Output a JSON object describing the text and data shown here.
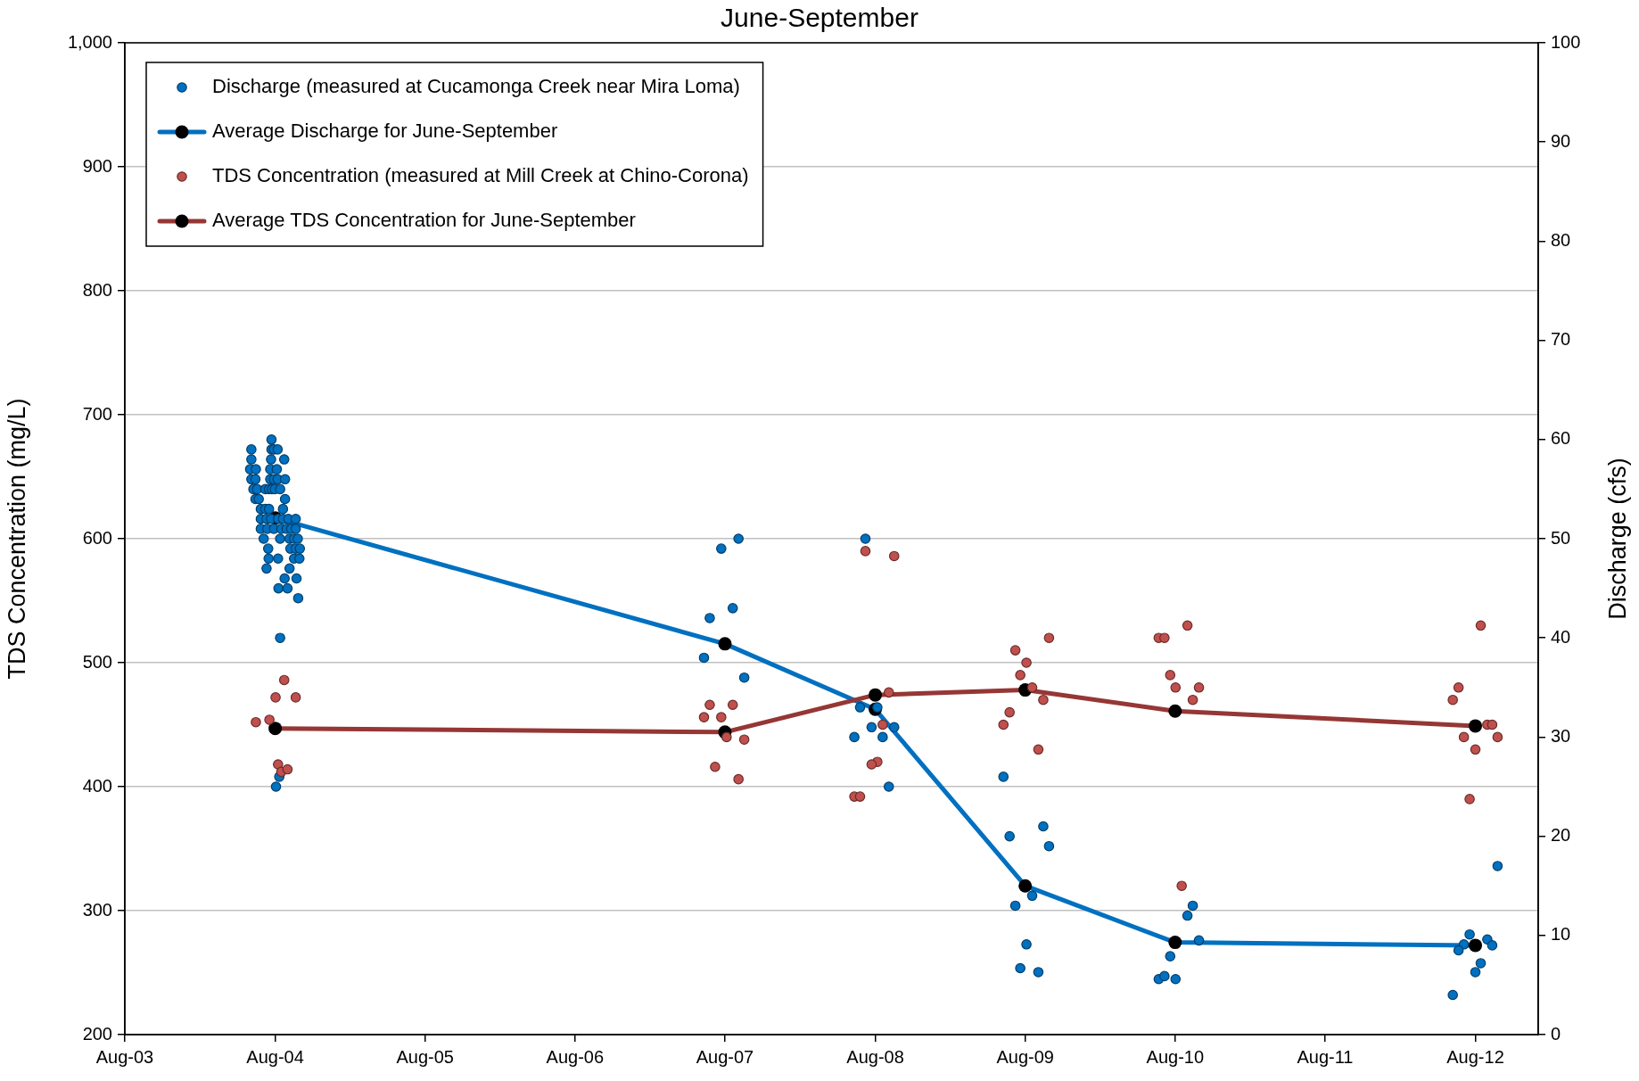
{
  "chart_data": {
    "type": "scatter",
    "title": "June-September",
    "ylabel": "TDS Concentration (mg/L)",
    "y2label": "Discharge (cfs)",
    "xlim": [
      "2003-08-01",
      "2013-01-01"
    ],
    "xticks": [
      {
        "value": "2003-08-01",
        "label": "Aug-03"
      },
      {
        "value": "2004-08-01",
        "label": "Aug-04"
      },
      {
        "value": "2005-08-01",
        "label": "Aug-05"
      },
      {
        "value": "2006-08-01",
        "label": "Aug-06"
      },
      {
        "value": "2007-08-01",
        "label": "Aug-07"
      },
      {
        "value": "2008-08-01",
        "label": "Aug-08"
      },
      {
        "value": "2009-08-01",
        "label": "Aug-09"
      },
      {
        "value": "2010-08-01",
        "label": "Aug-10"
      },
      {
        "value": "2011-08-01",
        "label": "Aug-11"
      },
      {
        "value": "2012-08-01",
        "label": "Aug-12"
      }
    ],
    "ylim": [
      200,
      1000
    ],
    "yticks": [
      200,
      300,
      400,
      500,
      600,
      700,
      800,
      900,
      {
        "value": 1000,
        "label": "1,000"
      }
    ],
    "y2lim": [
      0,
      100
    ],
    "y2ticks": [
      0,
      10,
      20,
      30,
      40,
      50,
      60,
      70,
      80,
      90,
      100
    ],
    "grid": "y",
    "legend": "top left",
    "marker": "circle",
    "series": [
      {
        "name": "Discharge (measured at Cucamonga Creek near Mira Loma)",
        "axis": "y2",
        "color": "#0070c0",
        "x": [
          "2004-07-23",
          "2004-06-04",
          "2004-07-23",
          "2004-07-29",
          "2004-08-07",
          "2004-06-04",
          "2004-07-22",
          "2004-08-23",
          "2004-06-01",
          "2004-06-15",
          "2004-07-20",
          "2004-08-05",
          "2004-06-04",
          "2004-06-14",
          "2004-07-20",
          "2004-07-29",
          "2004-08-07",
          "2004-08-25",
          "2004-06-09",
          "2004-06-18",
          "2004-07-08",
          "2004-07-17",
          "2004-07-24",
          "2004-07-31",
          "2004-08-13",
          "2004-06-14",
          "2004-06-22",
          "2004-08-25",
          "2004-06-27",
          "2004-07-08",
          "2004-07-17",
          "2004-08-20",
          "2004-06-27",
          "2004-07-11",
          "2004-07-22",
          "2004-08-08",
          "2004-08-20",
          "2004-09-02",
          "2004-09-20",
          "2004-06-27",
          "2004-07-13",
          "2004-07-29",
          "2004-08-16",
          "2004-08-29",
          "2004-09-09",
          "2004-09-20",
          "2004-07-04",
          "2004-08-13",
          "2004-09-05",
          "2004-09-16",
          "2004-09-25",
          "2004-07-15",
          "2004-09-07",
          "2004-09-20",
          "2004-09-30",
          "2004-07-16",
          "2004-08-08",
          "2004-09-16",
          "2004-09-29",
          "2004-07-11",
          "2004-09-05",
          "2004-08-24",
          "2004-09-22",
          "2004-08-09",
          "2004-08-31",
          "2004-09-26",
          "2004-08-13",
          "2004-08-11",
          "2004-08-03",
          "2007-09-03",
          "2007-07-23",
          "2007-08-20",
          "2007-06-25",
          "2007-06-11",
          "2007-09-17",
          "2008-07-08",
          "2008-06-25",
          "2008-08-06",
          "2008-07-23",
          "2008-09-16",
          "2008-06-11",
          "2008-08-19",
          "2008-09-03",
          "2009-06-09",
          "2009-09-14",
          "2009-06-24",
          "2009-09-28",
          "2009-08-18",
          "2009-07-08",
          "2009-08-04",
          "2009-07-20",
          "2009-09-02",
          "2010-09-13",
          "2010-08-31",
          "2010-09-28",
          "2010-07-20",
          "2010-06-22",
          "2010-07-06",
          "2010-08-02",
          "2012-09-24",
          "2012-07-18",
          "2012-07-04",
          "2012-06-21",
          "2012-08-30",
          "2012-09-11",
          "2012-08-14",
          "2012-08-01",
          "2012-06-07"
        ],
        "values": [
          60,
          59,
          59,
          59,
          59,
          58,
          58,
          58,
          57,
          57,
          57,
          57,
          56,
          56,
          56,
          56,
          56,
          56,
          55,
          55,
          55,
          55,
          55,
          55,
          55,
          54,
          54,
          54,
          53,
          53,
          53,
          53,
          52,
          52,
          52,
          52,
          52,
          52,
          52,
          51,
          51,
          51,
          51,
          51,
          51,
          51,
          50,
          50,
          50,
          50,
          50,
          49,
          49,
          49,
          49,
          48,
          48,
          48,
          48,
          47,
          47,
          46,
          46,
          45,
          45,
          44,
          40,
          26,
          25,
          50,
          49,
          43,
          42,
          38,
          36,
          50,
          33,
          33,
          31,
          31,
          30,
          30,
          25,
          26,
          21,
          20,
          19,
          14,
          13,
          9.1,
          6.7,
          6.3,
          13,
          12,
          9.5,
          7.9,
          5.6,
          5.9,
          5.6,
          17,
          10.1,
          9.1,
          8.5,
          9.6,
          9.0,
          7.2,
          6.3,
          4.0
        ]
      },
      {
        "name": "Average Discharge for June-September",
        "type": "line",
        "axis": "y2",
        "color": "#0070c0",
        "colors": [
          "#000000",
          "#000000",
          "#000000",
          "#000000",
          "#000000",
          "#000000"
        ],
        "x": [
          "2004-08-01",
          "2007-08-01",
          "2008-08-01",
          "2009-08-01",
          "2010-08-01",
          "2012-08-01"
        ],
        "values": [
          52.1,
          39.4,
          32.8,
          15.0,
          9.3,
          9.0
        ]
      },
      {
        "name": "TDS Concentration (measured at Mill Creek at Chino-Corona)",
        "axis": "y",
        "color": "#c0504d",
        "x": [
          "2004-08-23",
          "2004-08-02",
          "2004-09-20",
          "2004-06-15",
          "2004-07-18",
          "2004-08-08",
          "2004-08-16",
          "2004-08-31",
          "2007-06-25",
          "2007-08-20",
          "2007-06-11",
          "2007-07-23",
          "2007-08-05",
          "2007-09-17",
          "2007-07-08",
          "2007-09-03",
          "2008-07-08",
          "2008-09-16",
          "2008-09-03",
          "2008-08-19",
          "2008-08-06",
          "2008-07-23",
          "2008-06-11",
          "2008-06-25",
          "2009-09-28",
          "2009-07-08",
          "2009-08-04",
          "2009-07-20",
          "2009-08-18",
          "2009-09-14",
          "2009-06-24",
          "2009-06-09",
          "2009-09-02",
          "2010-08-31",
          "2010-06-22",
          "2010-07-06",
          "2010-07-20",
          "2010-08-02",
          "2010-09-28",
          "2010-09-13",
          "2010-08-17",
          "2012-08-14",
          "2012-06-21",
          "2012-06-07",
          "2012-08-30",
          "2012-09-11",
          "2012-07-04",
          "2012-09-24",
          "2012-08-01",
          "2012-07-18"
        ],
        "values": [
          486,
          472,
          472,
          452,
          454,
          418,
          412,
          414,
          466,
          466,
          456,
          456,
          440,
          438,
          416,
          406,
          590,
          586,
          476,
          450,
          420,
          418,
          392,
          392,
          520,
          510,
          500,
          490,
          480,
          470,
          460,
          450,
          430,
          530,
          520,
          520,
          490,
          480,
          480,
          470,
          320,
          530,
          480,
          470,
          450,
          450,
          440,
          440,
          430,
          390
        ]
      },
      {
        "name": "Average TDS Concentration for June-September",
        "type": "line",
        "axis": "y",
        "color": "#953735",
        "colors": [
          "#000000",
          "#000000",
          "#000000",
          "#000000",
          "#000000",
          "#000000"
        ],
        "x": [
          "2004-08-01",
          "2007-08-01",
          "2008-08-01",
          "2009-08-01",
          "2010-08-01",
          "2012-08-01"
        ],
        "values": [
          447,
          444,
          474,
          478,
          461,
          449
        ]
      }
    ]
  }
}
